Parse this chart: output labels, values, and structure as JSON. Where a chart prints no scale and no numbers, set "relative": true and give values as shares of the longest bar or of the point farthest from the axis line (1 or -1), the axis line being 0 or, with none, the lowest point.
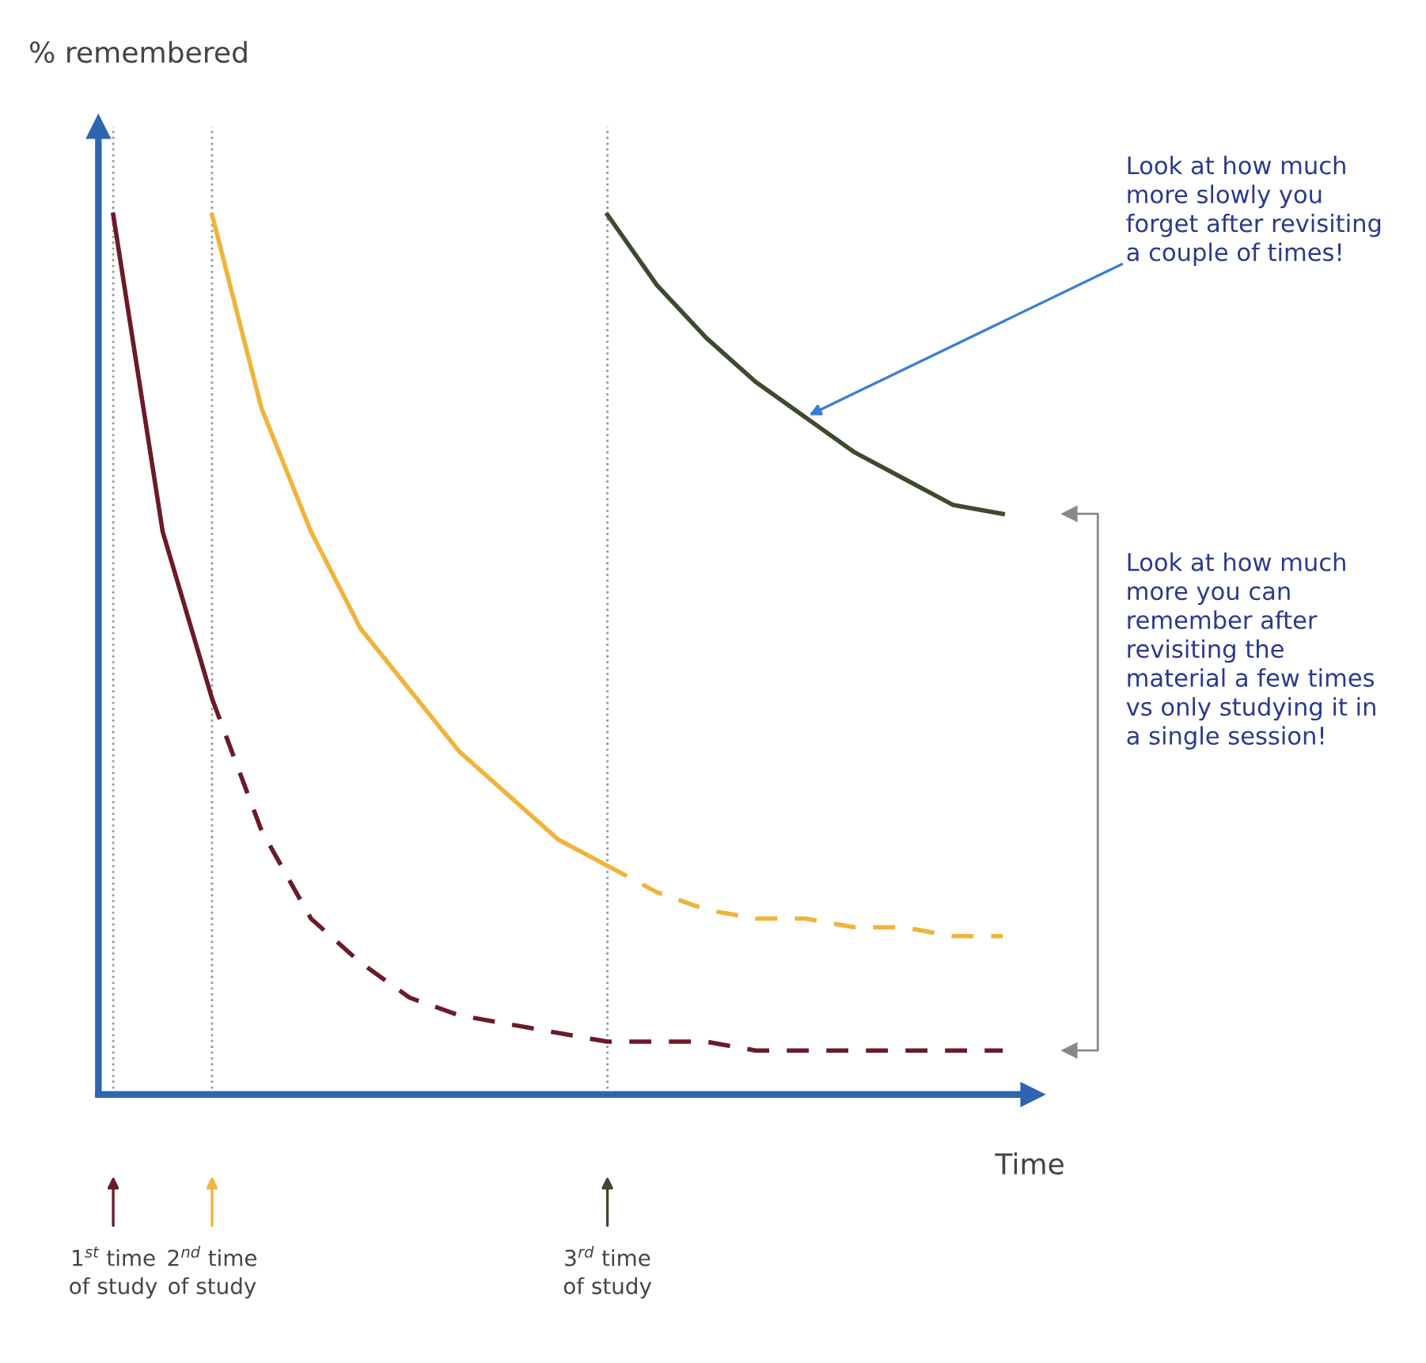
{
  "chart_data": {
    "type": "line",
    "relative": true,
    "xlabel": "Time",
    "categories": [
      null,
      null,
      null,
      null,
      null,
      null,
      null,
      null,
      null,
      null,
      null,
      null,
      null,
      null,
      null,
      null,
      null,
      null,
      null
    ],
    "series": [
      {
        "color": "#6b1a2a",
        "line_style": "solid",
        "values": [
          1.0,
          0.64,
          0.45,
          null,
          null,
          null,
          null,
          null,
          null,
          null,
          null,
          null,
          null,
          null,
          null,
          null,
          null,
          null,
          null
        ]
      },
      {
        "color": "#6b1a2a",
        "line_style": "dashed",
        "values": [
          null,
          null,
          0.45,
          0.3,
          0.2,
          0.15,
          0.11,
          0.09,
          0.08,
          0.07,
          0.06,
          0.06,
          0.06,
          0.05,
          0.05,
          0.05,
          0.05,
          0.05,
          0.05
        ]
      },
      {
        "color": "#f0b43c",
        "line_style": "solid",
        "values": [
          null,
          null,
          1.0,
          0.78,
          0.64,
          0.53,
          0.46,
          0.39,
          0.34,
          0.29,
          0.26,
          null,
          null,
          null,
          null,
          null,
          null,
          null,
          null
        ]
      },
      {
        "color": "#f0b43c",
        "line_style": "dashed",
        "values": [
          null,
          null,
          null,
          null,
          null,
          null,
          null,
          null,
          null,
          null,
          0.26,
          0.23,
          0.21,
          0.2,
          0.2,
          0.19,
          0.19,
          0.18,
          0.18
        ]
      },
      {
        "color": "#3d4a2e",
        "line_style": "solid",
        "values": [
          null,
          null,
          null,
          null,
          null,
          null,
          null,
          null,
          null,
          null,
          1.0,
          0.92,
          0.86,
          0.81,
          0.77,
          0.73,
          0.7,
          0.67,
          0.66
        ]
      }
    ],
    "annotations": [
      "% remembered",
      "1$^{st}$ time\nof study",
      "2$^{nd}$ time\nof study",
      "3$^{rd}$ time\nof study",
      "Look at how much\nmore slowly you\nforget after revisiting\na couple of times!",
      "Look at how much\nmore you can\nremember after\nrevisiting the\nmaterial a few times\nvs only studying it in\na single session!"
    ],
    "legend": false,
    "grid": "x",
    "marker": "none"
  }
}
